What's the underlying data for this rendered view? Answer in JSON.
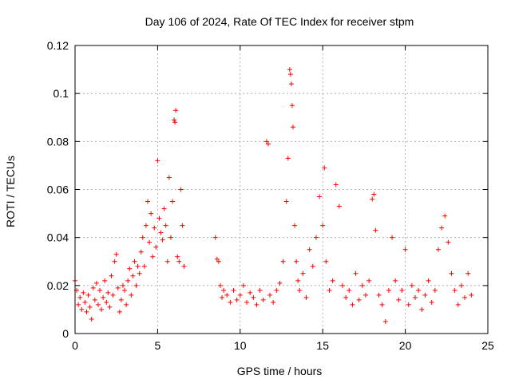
{
  "chart_data": {
    "type": "scatter",
    "title": "Day 106 of 2024, Rate Of TEC Index for receiver stpm",
    "xlabel": "GPS time / hours",
    "ylabel": "ROTI / TECUs",
    "xlim": [
      0,
      25
    ],
    "ylim": [
      0,
      0.12
    ],
    "xticks": [
      0,
      5,
      10,
      15,
      20,
      25
    ],
    "yticks": [
      0,
      0.02,
      0.04,
      0.06,
      0.08,
      0.1,
      0.12
    ],
    "xtick_labels": [
      "0",
      "5",
      "10",
      "15",
      "20",
      "25"
    ],
    "ytick_labels": [
      "0",
      "0.02",
      "0.04",
      "0.06",
      "0.08",
      "0.1",
      "0.12"
    ],
    "grid": true,
    "marker": "plus",
    "color": "#ff0000",
    "series": [
      {
        "name": "ROTI",
        "points": [
          [
            0.0,
            0.022
          ],
          [
            0.1,
            0.018
          ],
          [
            0.2,
            0.012
          ],
          [
            0.3,
            0.015
          ],
          [
            0.4,
            0.01
          ],
          [
            0.5,
            0.017
          ],
          [
            0.6,
            0.013
          ],
          [
            0.7,
            0.009
          ],
          [
            0.8,
            0.016
          ],
          [
            0.9,
            0.011
          ],
          [
            1.0,
            0.006
          ],
          [
            1.1,
            0.019
          ],
          [
            1.2,
            0.014
          ],
          [
            1.3,
            0.021
          ],
          [
            1.4,
            0.012
          ],
          [
            1.5,
            0.018
          ],
          [
            1.6,
            0.01
          ],
          [
            1.7,
            0.015
          ],
          [
            1.8,
            0.022
          ],
          [
            1.9,
            0.013
          ],
          [
            2.0,
            0.017
          ],
          [
            2.1,
            0.011
          ],
          [
            2.2,
            0.024
          ],
          [
            2.3,
            0.016
          ],
          [
            2.4,
            0.03
          ],
          [
            2.5,
            0.033
          ],
          [
            2.6,
            0.019
          ],
          [
            2.7,
            0.009
          ],
          [
            2.8,
            0.014
          ],
          [
            2.9,
            0.02
          ],
          [
            3.0,
            0.018
          ],
          [
            3.1,
            0.012
          ],
          [
            3.2,
            0.022
          ],
          [
            3.3,
            0.027
          ],
          [
            3.4,
            0.016
          ],
          [
            3.5,
            0.024
          ],
          [
            3.6,
            0.03
          ],
          [
            3.7,
            0.02
          ],
          [
            3.8,
            0.028
          ],
          [
            3.9,
            0.025
          ],
          [
            4.0,
            0.034
          ],
          [
            4.1,
            0.04
          ],
          [
            4.2,
            0.028
          ],
          [
            4.3,
            0.045
          ],
          [
            4.4,
            0.055
          ],
          [
            4.5,
            0.038
          ],
          [
            4.6,
            0.05
          ],
          [
            4.7,
            0.032
          ],
          [
            4.8,
            0.044
          ],
          [
            4.9,
            0.036
          ],
          [
            5.0,
            0.072
          ],
          [
            5.1,
            0.048
          ],
          [
            5.2,
            0.042
          ],
          [
            5.3,
            0.039
          ],
          [
            5.4,
            0.052
          ],
          [
            5.5,
            0.045
          ],
          [
            5.6,
            0.03
          ],
          [
            5.7,
            0.065
          ],
          [
            5.8,
            0.04
          ],
          [
            5.9,
            0.055
          ],
          [
            6.0,
            0.089
          ],
          [
            6.05,
            0.088
          ],
          [
            6.1,
            0.093
          ],
          [
            6.2,
            0.032
          ],
          [
            6.3,
            0.03
          ],
          [
            6.4,
            0.06
          ],
          [
            6.5,
            0.045
          ],
          [
            6.6,
            0.028
          ],
          [
            8.5,
            0.04
          ],
          [
            8.6,
            0.031
          ],
          [
            8.7,
            0.03
          ],
          [
            8.8,
            0.02
          ],
          [
            8.9,
            0.015
          ],
          [
            9.0,
            0.018
          ],
          [
            9.2,
            0.016
          ],
          [
            9.4,
            0.013
          ],
          [
            9.6,
            0.018
          ],
          [
            9.8,
            0.014
          ],
          [
            10.0,
            0.016
          ],
          [
            10.2,
            0.02
          ],
          [
            10.4,
            0.013
          ],
          [
            10.6,
            0.017
          ],
          [
            10.8,
            0.015
          ],
          [
            11.0,
            0.012
          ],
          [
            11.2,
            0.018
          ],
          [
            11.4,
            0.014
          ],
          [
            11.6,
            0.08
          ],
          [
            11.7,
            0.079
          ],
          [
            11.8,
            0.016
          ],
          [
            12.0,
            0.013
          ],
          [
            12.2,
            0.018
          ],
          [
            12.4,
            0.021
          ],
          [
            12.6,
            0.03
          ],
          [
            12.8,
            0.055
          ],
          [
            12.9,
            0.073
          ],
          [
            13.0,
            0.11
          ],
          [
            13.05,
            0.108
          ],
          [
            13.1,
            0.104
          ],
          [
            13.15,
            0.095
          ],
          [
            13.2,
            0.086
          ],
          [
            13.3,
            0.045
          ],
          [
            13.4,
            0.03
          ],
          [
            13.5,
            0.022
          ],
          [
            13.6,
            0.018
          ],
          [
            13.8,
            0.025
          ],
          [
            14.0,
            0.015
          ],
          [
            14.2,
            0.035
          ],
          [
            14.4,
            0.028
          ],
          [
            14.6,
            0.04
          ],
          [
            14.8,
            0.057
          ],
          [
            15.0,
            0.045
          ],
          [
            15.1,
            0.069
          ],
          [
            15.2,
            0.03
          ],
          [
            15.4,
            0.018
          ],
          [
            15.6,
            0.022
          ],
          [
            15.8,
            0.062
          ],
          [
            16.0,
            0.053
          ],
          [
            16.2,
            0.02
          ],
          [
            16.4,
            0.015
          ],
          [
            16.6,
            0.018
          ],
          [
            16.8,
            0.012
          ],
          [
            17.0,
            0.025
          ],
          [
            17.2,
            0.014
          ],
          [
            17.4,
            0.02
          ],
          [
            17.6,
            0.016
          ],
          [
            17.8,
            0.022
          ],
          [
            18.0,
            0.056
          ],
          [
            18.1,
            0.058
          ],
          [
            18.2,
            0.043
          ],
          [
            18.4,
            0.016
          ],
          [
            18.6,
            0.012
          ],
          [
            18.8,
            0.005
          ],
          [
            19.0,
            0.018
          ],
          [
            19.2,
            0.04
          ],
          [
            19.4,
            0.022
          ],
          [
            19.6,
            0.014
          ],
          [
            19.8,
            0.018
          ],
          [
            20.0,
            0.035
          ],
          [
            20.2,
            0.012
          ],
          [
            20.4,
            0.02
          ],
          [
            20.6,
            0.015
          ],
          [
            20.8,
            0.018
          ],
          [
            21.0,
            0.01
          ],
          [
            21.2,
            0.016
          ],
          [
            21.4,
            0.022
          ],
          [
            21.6,
            0.013
          ],
          [
            21.8,
            0.018
          ],
          [
            22.0,
            0.035
          ],
          [
            22.2,
            0.044
          ],
          [
            22.4,
            0.049
          ],
          [
            22.6,
            0.038
          ],
          [
            22.8,
            0.025
          ],
          [
            23.0,
            0.018
          ],
          [
            23.2,
            0.012
          ],
          [
            23.4,
            0.02
          ],
          [
            23.6,
            0.015
          ],
          [
            23.8,
            0.025
          ],
          [
            24.0,
            0.016
          ]
        ]
      }
    ]
  }
}
